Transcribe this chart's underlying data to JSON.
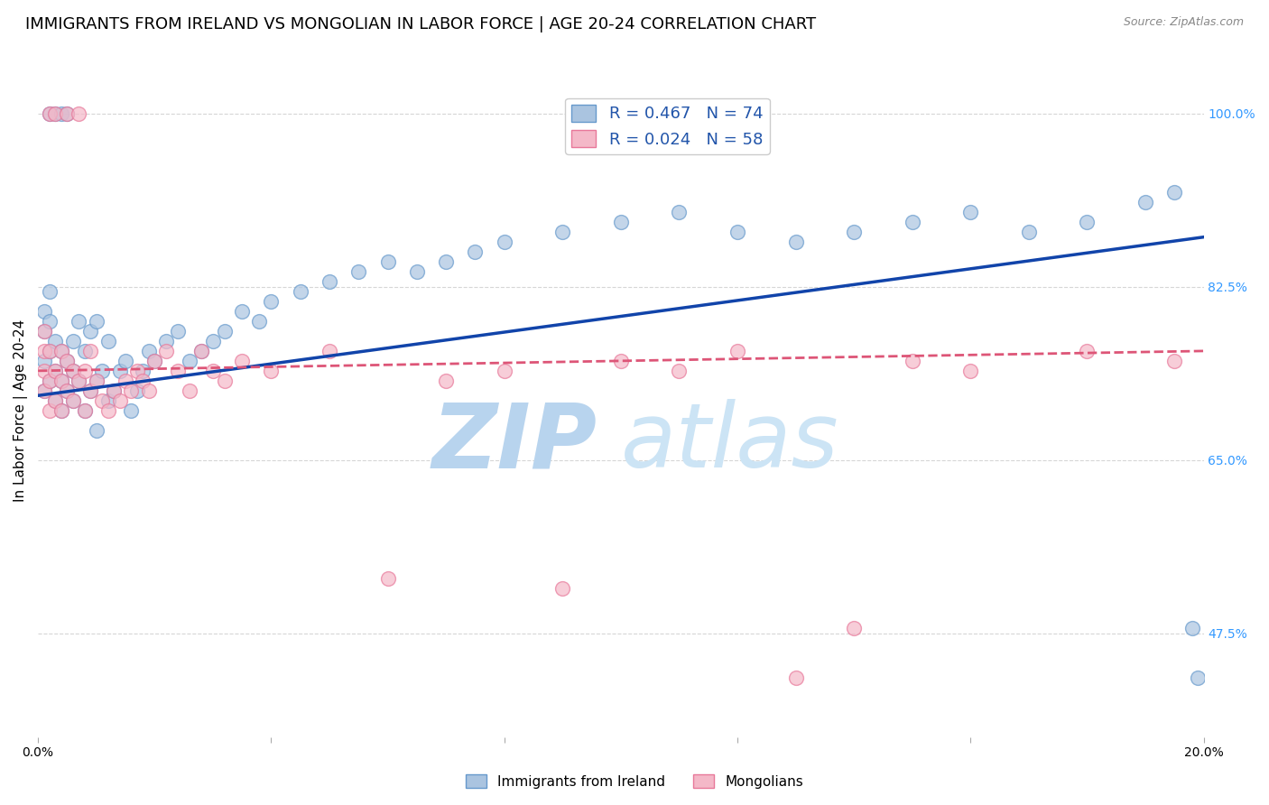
{
  "title": "IMMIGRANTS FROM IRELAND VS MONGOLIAN IN LABOR FORCE | AGE 20-24 CORRELATION CHART",
  "source": "Source: ZipAtlas.com",
  "ylabel": "In Labor Force | Age 20-24",
  "xlim": [
    0.0,
    0.2
  ],
  "ylim": [
    0.37,
    1.03
  ],
  "yticks_right": [
    1.0,
    0.825,
    0.65,
    0.475
  ],
  "yticklabels_right": [
    "100.0%",
    "82.5%",
    "65.0%",
    "47.5%"
  ],
  "gridline_color": "#cccccc",
  "background_color": "#ffffff",
  "ireland_color": "#aac4e0",
  "ireland_edge": "#6699cc",
  "mongolian_color": "#f4b8c8",
  "mongolian_edge": "#e8789a",
  "ireland_R": 0.467,
  "ireland_N": 74,
  "mongolian_R": 0.024,
  "mongolian_N": 58,
  "trend_ireland_color": "#1144aa",
  "trend_mongolian_color": "#dd5577",
  "legend_label_ireland": "Immigrants from Ireland",
  "legend_label_mongolian": "Mongolians",
  "watermark_zip": "ZIP",
  "watermark_atlas": "atlas",
  "watermark_color": "#cce0f5",
  "title_fontsize": 13,
  "axis_label_fontsize": 11,
  "tick_fontsize": 10,
  "ireland_x": [
    0.001,
    0.001,
    0.001,
    0.001,
    0.002,
    0.002,
    0.002,
    0.002,
    0.002,
    0.003,
    0.003,
    0.003,
    0.003,
    0.004,
    0.004,
    0.004,
    0.004,
    0.005,
    0.005,
    0.005,
    0.006,
    0.006,
    0.006,
    0.007,
    0.007,
    0.008,
    0.008,
    0.009,
    0.009,
    0.01,
    0.01,
    0.01,
    0.011,
    0.012,
    0.012,
    0.013,
    0.014,
    0.015,
    0.016,
    0.017,
    0.018,
    0.019,
    0.02,
    0.022,
    0.024,
    0.026,
    0.028,
    0.03,
    0.032,
    0.035,
    0.038,
    0.04,
    0.045,
    0.05,
    0.055,
    0.06,
    0.065,
    0.07,
    0.075,
    0.08,
    0.09,
    0.1,
    0.11,
    0.12,
    0.13,
    0.14,
    0.15,
    0.16,
    0.17,
    0.18,
    0.19,
    0.195,
    0.198,
    0.199
  ],
  "ireland_y": [
    0.72,
    0.75,
    0.78,
    0.8,
    0.73,
    0.76,
    0.79,
    0.82,
    1.0,
    0.71,
    0.74,
    0.77,
    1.0,
    0.7,
    0.73,
    0.76,
    1.0,
    0.72,
    0.75,
    1.0,
    0.71,
    0.74,
    0.77,
    0.73,
    0.79,
    0.7,
    0.76,
    0.72,
    0.78,
    0.68,
    0.73,
    0.79,
    0.74,
    0.71,
    0.77,
    0.72,
    0.74,
    0.75,
    0.7,
    0.72,
    0.74,
    0.76,
    0.75,
    0.77,
    0.78,
    0.75,
    0.76,
    0.77,
    0.78,
    0.8,
    0.79,
    0.81,
    0.82,
    0.83,
    0.84,
    0.85,
    0.84,
    0.85,
    0.86,
    0.87,
    0.88,
    0.89,
    0.9,
    0.88,
    0.87,
    0.88,
    0.89,
    0.9,
    0.88,
    0.89,
    0.91,
    0.92,
    0.48,
    0.43
  ],
  "mongolian_x": [
    0.001,
    0.001,
    0.001,
    0.001,
    0.002,
    0.002,
    0.002,
    0.002,
    0.003,
    0.003,
    0.003,
    0.004,
    0.004,
    0.004,
    0.005,
    0.005,
    0.005,
    0.006,
    0.006,
    0.007,
    0.007,
    0.008,
    0.008,
    0.009,
    0.009,
    0.01,
    0.011,
    0.012,
    0.013,
    0.014,
    0.015,
    0.016,
    0.017,
    0.018,
    0.019,
    0.02,
    0.022,
    0.024,
    0.026,
    0.028,
    0.03,
    0.032,
    0.035,
    0.04,
    0.05,
    0.06,
    0.07,
    0.08,
    0.1,
    0.12,
    0.09,
    0.11,
    0.13,
    0.14,
    0.15,
    0.16,
    0.18,
    0.195
  ],
  "mongolian_y": [
    0.72,
    0.74,
    0.76,
    0.78,
    0.7,
    0.73,
    0.76,
    1.0,
    0.71,
    0.74,
    1.0,
    0.7,
    0.73,
    0.76,
    0.72,
    0.75,
    1.0,
    0.71,
    0.74,
    0.73,
    1.0,
    0.7,
    0.74,
    0.72,
    0.76,
    0.73,
    0.71,
    0.7,
    0.72,
    0.71,
    0.73,
    0.72,
    0.74,
    0.73,
    0.72,
    0.75,
    0.76,
    0.74,
    0.72,
    0.76,
    0.74,
    0.73,
    0.75,
    0.74,
    0.76,
    0.53,
    0.73,
    0.74,
    0.75,
    0.76,
    0.52,
    0.74,
    0.43,
    0.48,
    0.75,
    0.74,
    0.76,
    0.75
  ],
  "ireland_trend_x0": 0.0,
  "ireland_trend_y0": 0.715,
  "ireland_trend_x1": 0.2,
  "ireland_trend_y1": 0.875,
  "mongolian_trend_x0": 0.0,
  "mongolian_trend_y0": 0.74,
  "mongolian_trend_x1": 0.2,
  "mongolian_trend_y1": 0.76
}
